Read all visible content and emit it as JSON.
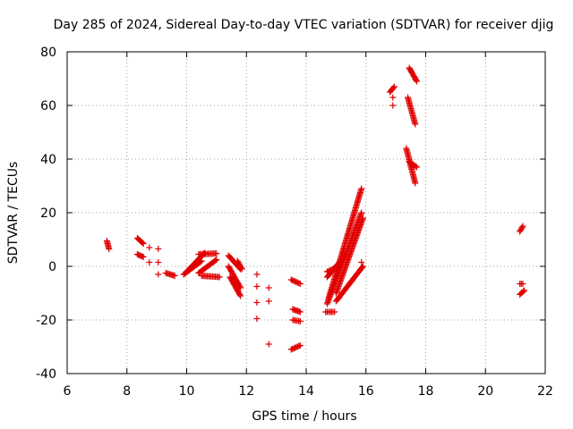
{
  "chart_data": {
    "type": "scatter",
    "title": "Day 285 of 2024, Sidereal Day-to-day VTEC variation (SDTVAR) for receiver djig",
    "xlabel": "GPS time / hours",
    "ylabel": "SDTVAR / TECUs",
    "xlim": [
      6,
      22
    ],
    "ylim": [
      -40,
      80
    ],
    "x_ticks": [
      "6",
      "8",
      "10",
      "12",
      "14",
      "16",
      "18",
      "20",
      "22"
    ],
    "y_ticks": [
      "-40",
      "-20",
      "0",
      "20",
      "40",
      "60",
      "80"
    ],
    "grid": true,
    "legend": "none",
    "marker": "plus",
    "color": "#e00000",
    "segments": [
      {
        "x0": 7.33,
        "y0": 9.5,
        "x1": 7.4,
        "y1": 6.5
      },
      {
        "x0": 8.35,
        "y0": 10.5,
        "x1": 8.55,
        "y1": 8.5
      },
      {
        "x0": 8.35,
        "y0": 4.5,
        "x1": 8.55,
        "y1": 3.5
      },
      {
        "x0": 9.3,
        "y0": -2.5,
        "x1": 9.6,
        "y1": -3.5
      },
      {
        "x0": 9.9,
        "y0": -3,
        "x1": 10.5,
        "y1": 2
      },
      {
        "x0": 10.0,
        "y0": -2,
        "x1": 10.6,
        "y1": 5
      },
      {
        "x0": 10.4,
        "y0": 4.5,
        "x1": 11.0,
        "y1": 4.8
      },
      {
        "x0": 10.4,
        "y0": -2.5,
        "x1": 11.0,
        "y1": 2.5
      },
      {
        "x0": 10.5,
        "y0": -3.5,
        "x1": 11.1,
        "y1": -4.0
      },
      {
        "x0": 11.4,
        "y0": 4,
        "x1": 11.8,
        "y1": -1
      },
      {
        "x0": 11.4,
        "y0": 0,
        "x1": 11.8,
        "y1": -8
      },
      {
        "x0": 11.45,
        "y0": -4,
        "x1": 11.8,
        "y1": -11
      },
      {
        "x0": 11.7,
        "y0": 2,
        "x1": 11.85,
        "y1": -1
      },
      {
        "x0": 13.5,
        "y0": -5,
        "x1": 13.8,
        "y1": -6.5
      },
      {
        "x0": 13.55,
        "y0": -16,
        "x1": 13.8,
        "y1": -17
      },
      {
        "x0": 13.55,
        "y0": -20,
        "x1": 13.8,
        "y1": -20.5
      },
      {
        "x0": 13.5,
        "y0": -31,
        "x1": 13.8,
        "y1": -29.5
      },
      {
        "x0": 14.65,
        "y0": -17,
        "x1": 14.95,
        "y1": -17
      },
      {
        "x0": 14.7,
        "y0": -14,
        "x1": 15.85,
        "y1": 20
      },
      {
        "x0": 14.75,
        "y0": -12,
        "x1": 15.85,
        "y1": 29
      },
      {
        "x0": 14.7,
        "y0": -4,
        "x1": 15.3,
        "y1": 4
      },
      {
        "x0": 15.0,
        "y0": -10,
        "x1": 15.9,
        "y1": 18
      },
      {
        "x0": 15.0,
        "y0": -13,
        "x1": 15.9,
        "y1": 0
      },
      {
        "x0": 14.7,
        "y0": -2,
        "x1": 15.1,
        "y1": 0
      },
      {
        "x0": 16.8,
        "y0": 65,
        "x1": 16.95,
        "y1": 67
      },
      {
        "x0": 17.45,
        "y0": 74,
        "x1": 17.7,
        "y1": 69
      },
      {
        "x0": 17.4,
        "y0": 63,
        "x1": 17.65,
        "y1": 53
      },
      {
        "x0": 17.35,
        "y0": 44,
        "x1": 17.65,
        "y1": 31
      },
      {
        "x0": 17.45,
        "y0": 39,
        "x1": 17.7,
        "y1": 37
      },
      {
        "x0": 21.15,
        "y0": 13,
        "x1": 21.25,
        "y1": 15
      },
      {
        "x0": 21.15,
        "y0": -6.5,
        "x1": 21.25,
        "y1": -6.5
      },
      {
        "x0": 21.15,
        "y0": -10.5,
        "x1": 21.3,
        "y1": -9
      }
    ],
    "points": [
      [
        8.75,
        7
      ],
      [
        9.05,
        6.5
      ],
      [
        8.75,
        1.5
      ],
      [
        9.05,
        1.5
      ],
      [
        9.05,
        -3
      ],
      [
        12.35,
        -3
      ],
      [
        12.35,
        -7.5
      ],
      [
        12.35,
        -13.5
      ],
      [
        12.35,
        -19.5
      ],
      [
        12.75,
        -8
      ],
      [
        12.75,
        -13
      ],
      [
        12.75,
        -29
      ],
      [
        15.85,
        1.5
      ],
      [
        16.9,
        63
      ],
      [
        16.9,
        60
      ]
    ]
  }
}
